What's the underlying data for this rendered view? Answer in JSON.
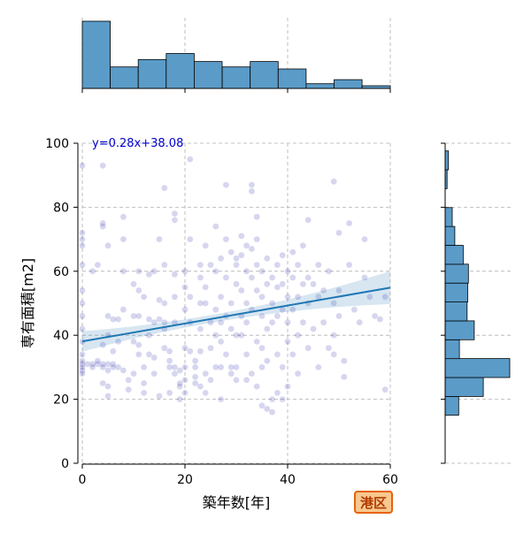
{
  "chart_data": {
    "type": "scatter",
    "xlabel": "築年数[年]",
    "ylabel": "専有面積[m2]",
    "xlim": [
      0,
      60
    ],
    "ylim": [
      0,
      100
    ],
    "xticks": [
      0,
      20,
      40,
      60
    ],
    "yticks": [
      0,
      20,
      40,
      60,
      80,
      100
    ],
    "grid": true,
    "regression": {
      "slope": 0.28,
      "intercept": 38.08,
      "label": "y=0.28x+38.08",
      "color": "#1f77b4"
    },
    "point_color": "#1a1aa6",
    "x_histogram": {
      "bin_edges": [
        0,
        5.45,
        10.9,
        16.35,
        21.8,
        27.25,
        32.7,
        38.15,
        43.6,
        49.05,
        54.5,
        60
      ],
      "heights": [
        1.0,
        0.32,
        0.43,
        0.52,
        0.4,
        0.32,
        0.4,
        0.29,
        0.07,
        0.13,
        0.04
      ]
    },
    "y_histogram": {
      "bin_edges": [
        15,
        20.9,
        26.8,
        32.7,
        38.6,
        44.5,
        50.4,
        56.3,
        62.2,
        68.1,
        74,
        79.9,
        85.8,
        91.7,
        97.6
      ],
      "heights": [
        0.21,
        0.59,
        1.0,
        0.22,
        0.45,
        0.34,
        0.35,
        0.36,
        0.28,
        0.15,
        0.11,
        0.0,
        0.03,
        0.05
      ]
    },
    "points": [
      [
        0,
        93
      ],
      [
        0,
        72
      ],
      [
        0,
        70
      ],
      [
        0,
        68
      ],
      [
        0,
        62
      ],
      [
        0,
        54
      ],
      [
        0,
        50
      ],
      [
        0,
        46
      ],
      [
        0,
        42
      ],
      [
        0,
        38
      ],
      [
        0,
        34
      ],
      [
        0,
        32
      ],
      [
        0,
        31
      ],
      [
        0,
        30
      ],
      [
        0,
        29
      ],
      [
        0,
        28
      ],
      [
        1,
        31
      ],
      [
        2,
        31
      ],
      [
        2,
        30
      ],
      [
        3,
        32
      ],
      [
        3,
        31
      ],
      [
        4,
        31
      ],
      [
        4,
        30
      ],
      [
        5,
        31
      ],
      [
        5,
        29
      ],
      [
        6,
        31
      ],
      [
        6,
        30
      ],
      [
        7,
        30
      ],
      [
        8,
        29
      ],
      [
        4,
        93
      ],
      [
        3,
        62
      ],
      [
        2,
        60
      ],
      [
        4,
        75
      ],
      [
        4,
        74
      ],
      [
        5,
        68
      ],
      [
        5,
        46
      ],
      [
        6,
        45
      ],
      [
        5,
        40
      ],
      [
        4,
        37
      ],
      [
        4,
        25
      ],
      [
        5,
        24
      ],
      [
        5,
        21
      ],
      [
        6,
        35
      ],
      [
        7,
        45
      ],
      [
        7,
        38
      ],
      [
        8,
        77
      ],
      [
        8,
        70
      ],
      [
        8,
        60
      ],
      [
        8,
        48
      ],
      [
        9,
        26
      ],
      [
        9,
        23
      ],
      [
        10,
        56
      ],
      [
        10,
        46
      ],
      [
        10,
        38
      ],
      [
        10,
        28
      ],
      [
        11,
        60
      ],
      [
        11,
        54
      ],
      [
        11,
        46
      ],
      [
        11,
        37
      ],
      [
        11,
        34
      ],
      [
        12,
        30
      ],
      [
        12,
        25
      ],
      [
        12,
        22
      ],
      [
        12,
        52
      ],
      [
        13,
        45
      ],
      [
        13,
        40
      ],
      [
        13,
        34
      ],
      [
        13,
        59
      ],
      [
        14,
        60
      ],
      [
        14,
        44
      ],
      [
        14,
        33
      ],
      [
        14,
        28
      ],
      [
        15,
        51
      ],
      [
        15,
        70
      ],
      [
        15,
        21
      ],
      [
        15,
        45
      ],
      [
        16,
        86
      ],
      [
        16,
        62
      ],
      [
        16,
        50
      ],
      [
        16,
        44
      ],
      [
        16,
        42
      ],
      [
        16,
        36
      ],
      [
        17,
        35
      ],
      [
        17,
        32
      ],
      [
        17,
        30
      ],
      [
        17,
        22
      ],
      [
        18,
        78
      ],
      [
        18,
        76
      ],
      [
        18,
        59
      ],
      [
        18,
        52
      ],
      [
        18,
        44
      ],
      [
        18,
        30
      ],
      [
        18,
        28
      ],
      [
        19,
        29
      ],
      [
        19,
        25
      ],
      [
        19,
        24
      ],
      [
        19,
        20
      ],
      [
        20,
        60
      ],
      [
        20,
        55
      ],
      [
        20,
        48
      ],
      [
        20,
        36
      ],
      [
        20,
        30
      ],
      [
        20,
        26
      ],
      [
        20,
        22
      ],
      [
        21,
        95
      ],
      [
        21,
        70
      ],
      [
        21,
        52
      ],
      [
        21,
        44
      ],
      [
        21,
        35
      ],
      [
        22,
        32
      ],
      [
        22,
        30
      ],
      [
        22,
        27
      ],
      [
        22,
        25
      ],
      [
        23,
        62
      ],
      [
        23,
        58
      ],
      [
        23,
        50
      ],
      [
        23,
        42
      ],
      [
        23,
        35
      ],
      [
        23,
        24
      ],
      [
        24,
        68
      ],
      [
        24,
        55
      ],
      [
        24,
        50
      ],
      [
        24,
        28
      ],
      [
        24,
        22
      ],
      [
        25,
        62
      ],
      [
        25,
        44
      ],
      [
        25,
        36
      ],
      [
        25,
        26
      ],
      [
        26,
        74
      ],
      [
        26,
        60
      ],
      [
        26,
        48
      ],
      [
        26,
        40
      ],
      [
        26,
        30
      ],
      [
        27,
        64
      ],
      [
        27,
        52
      ],
      [
        27,
        44
      ],
      [
        27,
        38
      ],
      [
        27,
        30
      ],
      [
        27,
        20
      ],
      [
        28,
        87
      ],
      [
        28,
        70
      ],
      [
        28,
        58
      ],
      [
        28,
        46
      ],
      [
        28,
        34
      ],
      [
        29,
        66
      ],
      [
        29,
        50
      ],
      [
        29,
        42
      ],
      [
        29,
        30
      ],
      [
        29,
        28
      ],
      [
        30,
        64
      ],
      [
        30,
        62
      ],
      [
        30,
        56
      ],
      [
        30,
        40
      ],
      [
        30,
        30
      ],
      [
        30,
        26
      ],
      [
        31,
        71
      ],
      [
        31,
        65
      ],
      [
        31,
        54
      ],
      [
        31,
        46
      ],
      [
        31,
        40
      ],
      [
        32,
        68
      ],
      [
        32,
        60
      ],
      [
        32,
        50
      ],
      [
        32,
        44
      ],
      [
        32,
        34
      ],
      [
        32,
        26
      ],
      [
        33,
        87
      ],
      [
        33,
        85
      ],
      [
        33,
        67
      ],
      [
        33,
        58
      ],
      [
        33,
        48
      ],
      [
        33,
        28
      ],
      [
        34,
        77
      ],
      [
        34,
        70
      ],
      [
        34,
        62
      ],
      [
        34,
        54
      ],
      [
        34,
        38
      ],
      [
        34,
        24
      ],
      [
        35,
        60
      ],
      [
        35,
        52
      ],
      [
        35,
        46
      ],
      [
        35,
        36
      ],
      [
        35,
        30
      ],
      [
        35,
        18
      ],
      [
        36,
        64
      ],
      [
        36,
        56
      ],
      [
        36,
        42
      ],
      [
        36,
        32
      ],
      [
        36,
        17
      ],
      [
        37,
        58
      ],
      [
        37,
        50
      ],
      [
        37,
        44
      ],
      [
        37,
        20
      ],
      [
        37,
        16
      ],
      [
        38,
        62
      ],
      [
        38,
        55
      ],
      [
        38,
        46
      ],
      [
        38,
        34
      ],
      [
        38,
        22
      ],
      [
        39,
        65
      ],
      [
        39,
        56
      ],
      [
        39,
        48
      ],
      [
        39,
        30
      ],
      [
        39,
        20
      ],
      [
        40,
        60
      ],
      [
        40,
        52
      ],
      [
        40,
        44
      ],
      [
        40,
        38
      ],
      [
        40,
        24
      ],
      [
        41,
        66
      ],
      [
        41,
        58
      ],
      [
        41,
        48
      ],
      [
        41,
        34
      ],
      [
        42,
        62
      ],
      [
        42,
        52
      ],
      [
        42,
        40
      ],
      [
        42,
        28
      ],
      [
        43,
        68
      ],
      [
        43,
        56
      ],
      [
        43,
        44
      ],
      [
        44,
        76
      ],
      [
        44,
        58
      ],
      [
        44,
        50
      ],
      [
        44,
        36
      ],
      [
        45,
        56
      ],
      [
        45,
        42
      ],
      [
        46,
        62
      ],
      [
        46,
        52
      ],
      [
        46,
        30
      ],
      [
        47,
        54
      ],
      [
        47,
        44
      ],
      [
        48,
        60
      ],
      [
        48,
        36
      ],
      [
        49,
        88
      ],
      [
        49,
        50
      ],
      [
        49,
        40
      ],
      [
        49,
        34
      ],
      [
        50,
        72
      ],
      [
        50,
        54
      ],
      [
        50,
        46
      ],
      [
        51,
        32
      ],
      [
        51,
        27
      ],
      [
        52,
        75
      ],
      [
        52,
        62
      ],
      [
        53,
        48
      ],
      [
        54,
        44
      ],
      [
        55,
        70
      ],
      [
        55,
        58
      ],
      [
        56,
        52
      ],
      [
        57,
        46
      ],
      [
        58,
        45
      ],
      [
        59,
        52
      ],
      [
        59,
        23
      ]
    ]
  },
  "badge": {
    "text": "港区"
  }
}
